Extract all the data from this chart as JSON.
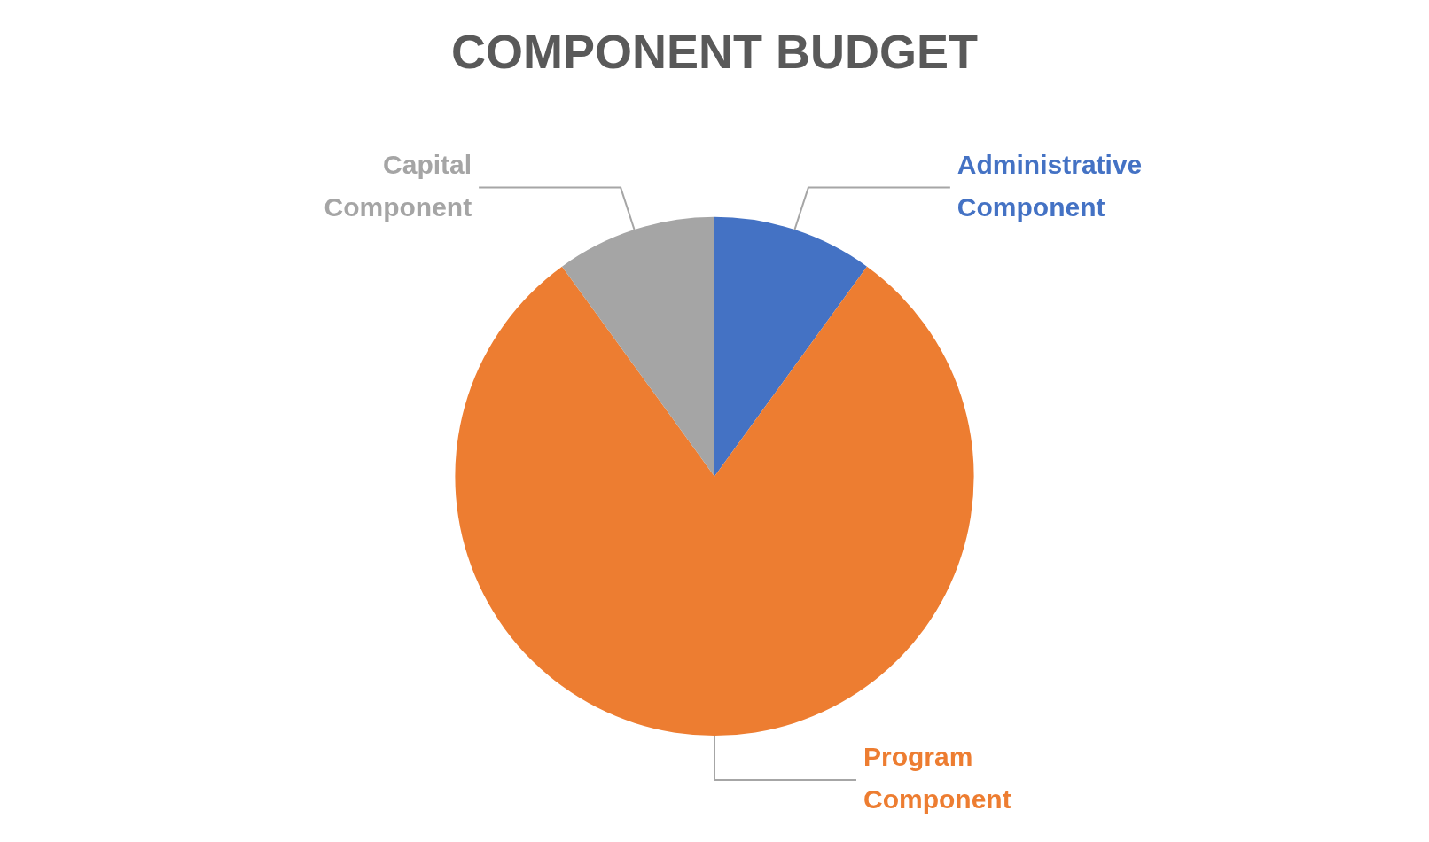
{
  "chart_data": {
    "type": "pie",
    "title": "COMPONENT BUDGET",
    "categories": [
      "Administrative Component",
      "Program Component",
      "Capital Component"
    ],
    "values": [
      10,
      80,
      10
    ],
    "colors": [
      "#4472c4",
      "#ed7d31",
      "#a5a5a5"
    ],
    "legend": false
  }
}
